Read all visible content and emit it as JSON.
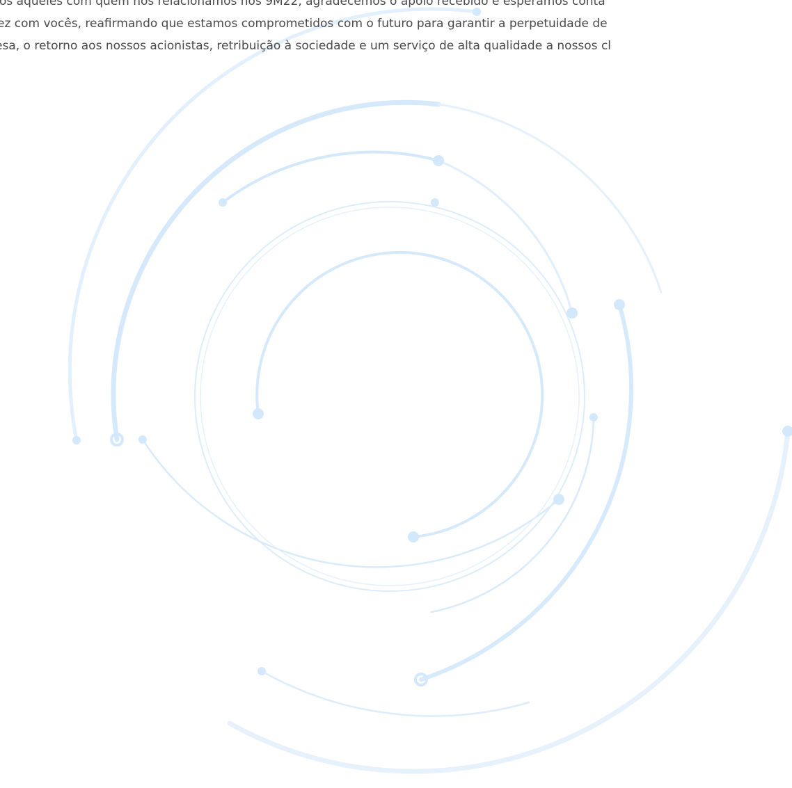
{
  "document": {
    "paragraph_lines": [
      "os aqueles com quem nos relacionamos nos 9M22, agradecemos o apoio recebido e esperamos conta",
      "ez com vocês, reafirmando que estamos comprometidos com o futuro para garantir a perpetuidade de",
      "esa, o retorno aos nossos acionistas, retribuição à sociedade e um serviço de alta qualidade a nossos cl"
    ]
  },
  "colors": {
    "text": "#4a4a4a",
    "arc_light": "#dcecfb",
    "arc_mid": "#cfe5fa",
    "dot": "#d3e8fb",
    "background": "#ffffff"
  }
}
